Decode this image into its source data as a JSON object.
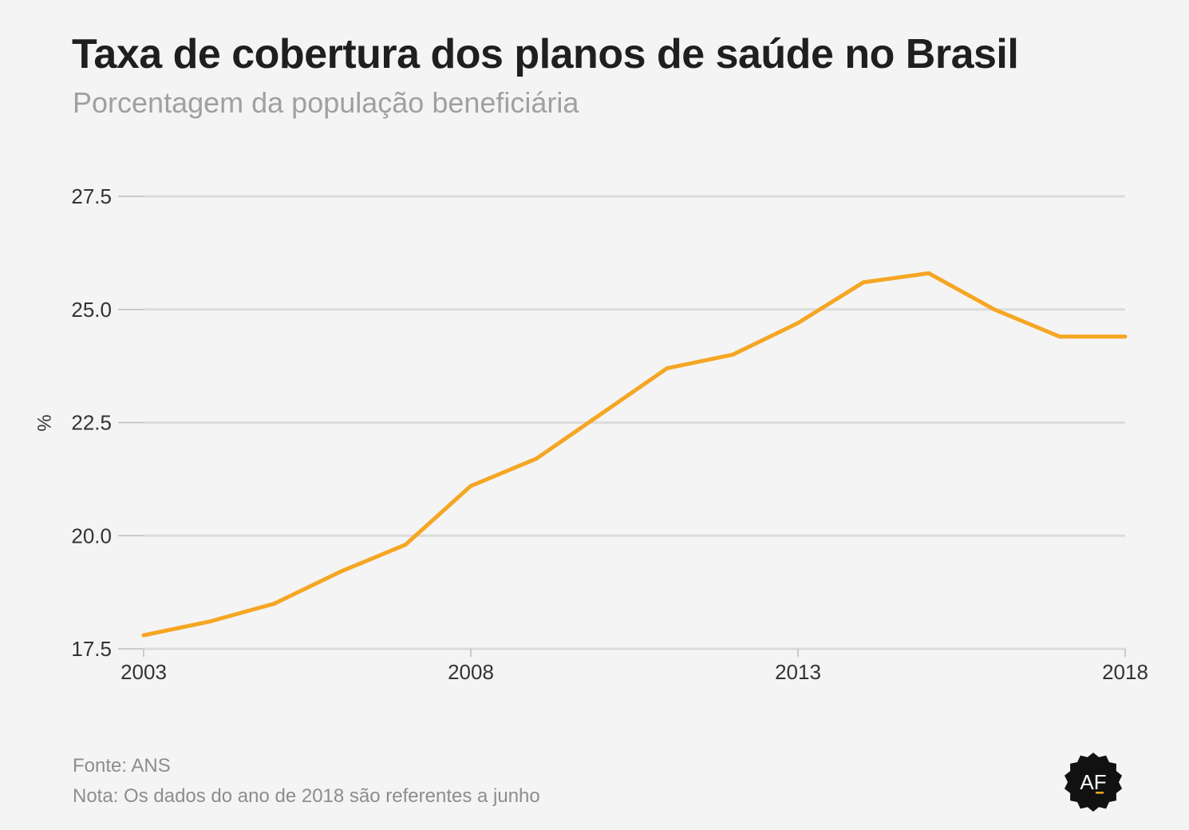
{
  "header": {
    "title": "Taxa de cobertura dos planos de saúde no Brasil",
    "subtitle": "Porcentagem da população beneficiária"
  },
  "footer": {
    "source": "Fonte: ANS",
    "note": "Nota: Os dados do ano de 2018 são referentes a junho"
  },
  "logo": {
    "text": "AF",
    "icon": "af-badge-icon"
  },
  "colors": {
    "line": "#f5a623",
    "grid": "#dcdcdc",
    "tick_text": "#333333",
    "background": "#f4f4f4"
  },
  "chart_data": {
    "type": "line",
    "title": "Taxa de cobertura dos planos de saúde no Brasil",
    "subtitle": "Porcentagem da população beneficiária",
    "xlabel": "",
    "ylabel": "%",
    "xlim": [
      2003,
      2018
    ],
    "ylim": [
      17.5,
      27.5
    ],
    "x_ticks": [
      "2003",
      "2008",
      "2013",
      "2018"
    ],
    "y_ticks": [
      "17.5",
      "20.0",
      "22.5",
      "25.0",
      "27.5"
    ],
    "grid": true,
    "legend": "none",
    "series": [
      {
        "x": [
          2003,
          2004,
          2005,
          2006,
          2007,
          2008,
          2009,
          2010,
          2011,
          2012,
          2013,
          2014,
          2015,
          2016,
          2017,
          2018
        ],
        "values": [
          17.8,
          18.1,
          18.5,
          19.2,
          19.8,
          21.1,
          21.7,
          22.7,
          23.7,
          24.0,
          24.7,
          25.6,
          25.8,
          25.0,
          24.4,
          24.4
        ]
      }
    ]
  }
}
